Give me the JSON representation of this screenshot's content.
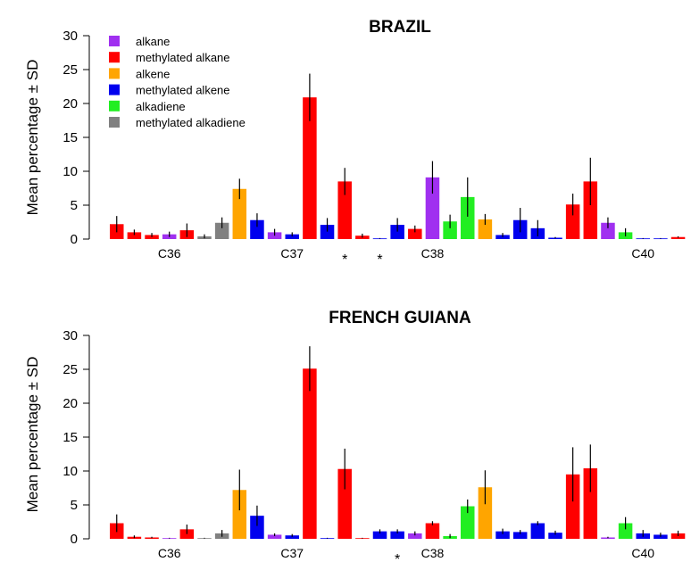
{
  "colors": {
    "alkane": "#a030f0",
    "methylated alkane": "#ff0000",
    "alkene": "#ffa500",
    "methylated alkene": "#0000ee",
    "alkadiene": "#22ee22",
    "methylated alkadiene": "#808080"
  },
  "legend": {
    "items": [
      {
        "label": "alkane",
        "color": "#a030f0"
      },
      {
        "label": "methylated alkane",
        "color": "#ff0000"
      },
      {
        "label": "alkene",
        "color": "#ffa500"
      },
      {
        "label": "methylated alkene",
        "color": "#0000ee"
      },
      {
        "label": "alkadiene",
        "color": "#22ee22"
      },
      {
        "label": "methylated alkadiene",
        "color": "#808080"
      }
    ]
  },
  "chart_data": [
    {
      "type": "bar",
      "title": "BRAZIL",
      "ylabel": "Mean percentage ± SD",
      "ylim": [
        0,
        30
      ],
      "yticks": [
        0,
        5,
        10,
        15,
        20,
        25,
        30
      ],
      "group_labels": [
        {
          "label": "C36",
          "at_bar": 3
        },
        {
          "label": "C37",
          "at_bar": 10
        },
        {
          "label": "C38",
          "at_bar": 18
        },
        {
          "label": "C40",
          "at_bar": 30
        }
      ],
      "stars": [
        {
          "label": "*",
          "at_bar": 13
        },
        {
          "label": "*",
          "at_bar": 15
        }
      ],
      "legend": "top-left",
      "bars": [
        {
          "class": "methylated alkane",
          "value": 2.2,
          "sd": 1.2
        },
        {
          "class": "methylated alkane",
          "value": 1.0,
          "sd": 0.4
        },
        {
          "class": "methylated alkane",
          "value": 0.6,
          "sd": 0.3
        },
        {
          "class": "alkane",
          "value": 0.7,
          "sd": 0.4
        },
        {
          "class": "methylated alkane",
          "value": 1.3,
          "sd": 1.0
        },
        {
          "class": "methylated alkadiene",
          "value": 0.4,
          "sd": 0.3
        },
        {
          "class": "methylated alkadiene",
          "value": 2.4,
          "sd": 0.8
        },
        {
          "class": "alkene",
          "value": 7.4,
          "sd": 1.5
        },
        {
          "class": "methylated alkene",
          "value": 2.8,
          "sd": 1.0
        },
        {
          "class": "alkane",
          "value": 1.0,
          "sd": 0.5
        },
        {
          "class": "methylated alkene",
          "value": 0.7,
          "sd": 0.3
        },
        {
          "class": "methylated alkane",
          "value": 20.9,
          "sd": 3.5
        },
        {
          "class": "methylated alkene",
          "value": 2.1,
          "sd": 1.0
        },
        {
          "class": "methylated alkane",
          "value": 8.5,
          "sd": 2.0
        },
        {
          "class": "methylated alkane",
          "value": 0.5,
          "sd": 0.3
        },
        {
          "class": "methylated alkene",
          "value": 0.1,
          "sd": 0.05
        },
        {
          "class": "methylated alkene",
          "value": 2.1,
          "sd": 1.0
        },
        {
          "class": "methylated alkane",
          "value": 1.5,
          "sd": 0.5
        },
        {
          "class": "alkane",
          "value": 9.1,
          "sd": 2.4
        },
        {
          "class": "alkadiene",
          "value": 2.6,
          "sd": 1.0
        },
        {
          "class": "alkadiene",
          "value": 6.2,
          "sd": 2.9
        },
        {
          "class": "alkene",
          "value": 2.9,
          "sd": 0.8
        },
        {
          "class": "methylated alkene",
          "value": 0.6,
          "sd": 0.3
        },
        {
          "class": "methylated alkene",
          "value": 2.8,
          "sd": 1.8
        },
        {
          "class": "methylated alkene",
          "value": 1.6,
          "sd": 1.2
        },
        {
          "class": "methylated alkene",
          "value": 0.2,
          "sd": 0.1
        },
        {
          "class": "methylated alkane",
          "value": 5.1,
          "sd": 1.6
        },
        {
          "class": "methylated alkane",
          "value": 8.5,
          "sd": 3.5
        },
        {
          "class": "alkane",
          "value": 2.4,
          "sd": 0.8
        },
        {
          "class": "alkadiene",
          "value": 1.0,
          "sd": 0.6
        },
        {
          "class": "methylated alkene",
          "value": 0.1,
          "sd": 0.05
        },
        {
          "class": "methylated alkene",
          "value": 0.1,
          "sd": 0.05
        },
        {
          "class": "methylated alkane",
          "value": 0.3,
          "sd": 0.1
        }
      ]
    },
    {
      "type": "bar",
      "title": "FRENCH GUIANA",
      "ylabel": "Mean percentage ± SD",
      "ylim": [
        0,
        30
      ],
      "yticks": [
        0,
        5,
        10,
        15,
        20,
        25,
        30
      ],
      "group_labels": [
        {
          "label": "C36",
          "at_bar": 3
        },
        {
          "label": "C37",
          "at_bar": 10
        },
        {
          "label": "C38",
          "at_bar": 18
        },
        {
          "label": "C40",
          "at_bar": 30
        }
      ],
      "stars": [
        {
          "label": "*",
          "at_bar": 16
        }
      ],
      "bars": [
        {
          "class": "methylated alkane",
          "value": 2.3,
          "sd": 1.3
        },
        {
          "class": "methylated alkane",
          "value": 0.3,
          "sd": 0.2
        },
        {
          "class": "methylated alkane",
          "value": 0.2,
          "sd": 0.1
        },
        {
          "class": "alkane",
          "value": 0.1,
          "sd": 0.05
        },
        {
          "class": "methylated alkane",
          "value": 1.4,
          "sd": 0.7
        },
        {
          "class": "methylated alkadiene",
          "value": 0.1,
          "sd": 0.05
        },
        {
          "class": "methylated alkadiene",
          "value": 0.8,
          "sd": 0.5
        },
        {
          "class": "alkene",
          "value": 7.2,
          "sd": 3.0
        },
        {
          "class": "methylated alkene",
          "value": 3.4,
          "sd": 1.5
        },
        {
          "class": "alkane",
          "value": 0.6,
          "sd": 0.2
        },
        {
          "class": "methylated alkene",
          "value": 0.5,
          "sd": 0.2
        },
        {
          "class": "methylated alkane",
          "value": 25.1,
          "sd": 3.3
        },
        {
          "class": "methylated alkene",
          "value": 0.1,
          "sd": 0.05
        },
        {
          "class": "methylated alkane",
          "value": 10.3,
          "sd": 3.0
        },
        {
          "class": "methylated alkane",
          "value": 0.1,
          "sd": 0.05
        },
        {
          "class": "methylated alkene",
          "value": 1.1,
          "sd": 0.3
        },
        {
          "class": "methylated alkene",
          "value": 1.1,
          "sd": 0.3
        },
        {
          "class": "alkane",
          "value": 0.8,
          "sd": 0.3
        },
        {
          "class": "methylated alkane",
          "value": 2.3,
          "sd": 0.3
        },
        {
          "class": "alkadiene",
          "value": 0.4,
          "sd": 0.3
        },
        {
          "class": "alkadiene",
          "value": 4.8,
          "sd": 1.0
        },
        {
          "class": "alkene",
          "value": 7.6,
          "sd": 2.5
        },
        {
          "class": "methylated alkene",
          "value": 1.1,
          "sd": 0.4
        },
        {
          "class": "methylated alkene",
          "value": 1.0,
          "sd": 0.3
        },
        {
          "class": "methylated alkene",
          "value": 2.3,
          "sd": 0.3
        },
        {
          "class": "methylated alkene",
          "value": 0.9,
          "sd": 0.3
        },
        {
          "class": "methylated alkane",
          "value": 9.5,
          "sd": 4.0
        },
        {
          "class": "methylated alkane",
          "value": 10.4,
          "sd": 3.5
        },
        {
          "class": "alkane",
          "value": 0.2,
          "sd": 0.1
        },
        {
          "class": "alkadiene",
          "value": 2.3,
          "sd": 0.9
        },
        {
          "class": "methylated alkene",
          "value": 0.8,
          "sd": 0.5
        },
        {
          "class": "methylated alkene",
          "value": 0.6,
          "sd": 0.3
        },
        {
          "class": "methylated alkane",
          "value": 0.8,
          "sd": 0.4
        }
      ]
    }
  ]
}
